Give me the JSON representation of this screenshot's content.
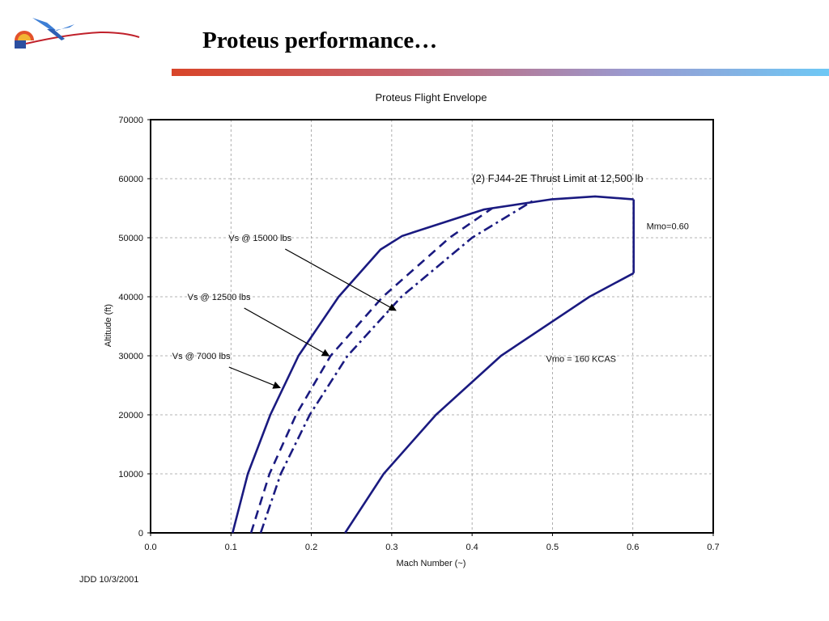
{
  "slide": {
    "title": "Proteus performance…",
    "footer": "JDD 10/3/2001"
  },
  "colors": {
    "curve": "#1a1a80",
    "axis": "#000000",
    "grid": "#9a9a9a"
  },
  "logo": {
    "icon": "aircraft-logo-icon"
  },
  "chart_data": {
    "type": "line",
    "title": "Proteus Flight Envelope",
    "xlabel": "Mach Number  (~)",
    "ylabel": "Altitude  (ft)",
    "xlim": [
      0,
      0.7
    ],
    "ylim": [
      0,
      70000
    ],
    "xticks": [
      "0.0",
      "0.1",
      "0.2",
      "0.3",
      "0.4",
      "0.5",
      "0.6",
      "0.7"
    ],
    "yticks": [
      "0",
      "10000",
      "20000",
      "30000",
      "40000",
      "50000",
      "60000",
      "70000"
    ],
    "grid": true,
    "series": [
      {
        "name": "Vs @ 7000 lbs",
        "style": "solid",
        "x": [
          0.102,
          0.121,
          0.149,
          0.184,
          0.234,
          0.286,
          0.313,
          0.415,
          0.498,
          0.553,
          0.601
        ],
        "y": [
          0,
          10000,
          20000,
          30000,
          40000,
          48000,
          50300,
          54800,
          56500,
          57000,
          56500
        ]
      },
      {
        "name": "Vs @ 12500 lbs",
        "style": "dashed",
        "x": [
          0.125,
          0.148,
          0.181,
          0.224,
          0.289,
          0.372,
          0.425
        ],
        "y": [
          0,
          10000,
          20000,
          30000,
          40000,
          50000,
          55000
        ]
      },
      {
        "name": "Vs @ 15000 lbs",
        "style": "dashdot",
        "x": [
          0.137,
          0.162,
          0.198,
          0.245,
          0.312,
          0.4,
          0.475
        ],
        "y": [
          0,
          10000,
          20000,
          30000,
          40000,
          50000,
          56200
        ]
      },
      {
        "name": "Vmo = 160 KCAS",
        "style": "solid",
        "x": [
          0.242,
          0.29,
          0.355,
          0.436,
          0.546,
          0.601
        ],
        "y": [
          0,
          10000,
          20000,
          30000,
          40000,
          44000
        ]
      },
      {
        "name": "Mmo=0.60",
        "style": "solid",
        "x": [
          0.601,
          0.601
        ],
        "y": [
          44000,
          56500
        ]
      }
    ],
    "annotations": [
      {
        "text": "(2) FJ44-2E Thrust Limit at 12,500 lb",
        "x": 0.4,
        "y": 60000
      },
      {
        "text": "Mmo=0.60",
        "x": 0.617,
        "y": 52000
      },
      {
        "text": "Vmo = 160 KCAS",
        "x": 0.492,
        "y": 29500
      },
      {
        "text": "Vs @ 15000 lbs",
        "x": 0.097,
        "y": 50000,
        "arrow_to": [
          0.305,
          37700
        ]
      },
      {
        "text": "Vs @ 12500 lbs",
        "x": 0.046,
        "y": 40000,
        "arrow_to": [
          0.222,
          30000
        ]
      },
      {
        "text": "Vs @ 7000 lbs",
        "x": 0.027,
        "y": 30000,
        "arrow_to": [
          0.161,
          24600
        ]
      }
    ]
  }
}
